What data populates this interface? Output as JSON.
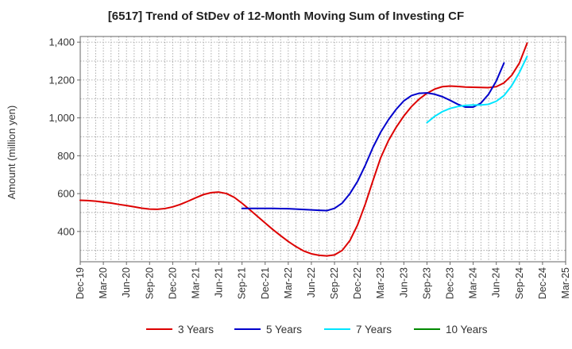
{
  "chart_data": {
    "type": "line",
    "title": "[6517]  Trend of StDev of 12-Month Moving Sum of Investing CF",
    "ylabel": "Amount (million yen)",
    "xlabel": "",
    "ylim": [
      240,
      1430
    ],
    "yticks": [
      400,
      600,
      800,
      1000,
      1200,
      1400
    ],
    "ytick_labels": [
      "400",
      "600",
      "800",
      "1,000",
      "1,200",
      "1,400"
    ],
    "xtick_labels": [
      "Dec-19",
      "Mar-20",
      "Jun-20",
      "Sep-20",
      "Dec-20",
      "Mar-21",
      "Jun-21",
      "Sep-21",
      "Dec-21",
      "Mar-22",
      "Jun-22",
      "Sep-22",
      "Dec-22",
      "Mar-23",
      "Jun-23",
      "Sep-23",
      "Dec-23",
      "Mar-24",
      "Jun-24",
      "Sep-24",
      "Dec-24",
      "Mar-25"
    ],
    "grid": true,
    "legend_position": "bottom",
    "series": [
      {
        "name": "3 Years",
        "color": "#dd0000",
        "start": "Dec-19",
        "values": [
          565,
          563,
          560,
          555,
          550,
          543,
          537,
          530,
          523,
          518,
          517,
          521,
          530,
          543,
          560,
          578,
          595,
          605,
          608,
          600,
          580,
          549,
          515,
          480,
          445,
          410,
          378,
          347,
          320,
          297,
          282,
          274,
          271,
          276,
          300,
          352,
          435,
          545,
          670,
          790,
          880,
          950,
          1010,
          1060,
          1100,
          1130,
          1152,
          1165,
          1168,
          1166,
          1163,
          1162,
          1161,
          1160,
          1165,
          1185,
          1225,
          1290,
          1395
        ]
      },
      {
        "name": "5 Years",
        "color": "#0000cc",
        "start": "Sep-21",
        "values": [
          522,
          522,
          522,
          522,
          522,
          521,
          520,
          518,
          516,
          514,
          512,
          510,
          522,
          550,
          600,
          665,
          750,
          845,
          925,
          990,
          1045,
          1090,
          1118,
          1130,
          1132,
          1125,
          1112,
          1093,
          1072,
          1057,
          1057,
          1078,
          1125,
          1195,
          1290
        ]
      },
      {
        "name": "7 Years",
        "color": "#00e5ff",
        "start": "Sep-23",
        "values": [
          975,
          1008,
          1033,
          1050,
          1060,
          1066,
          1068,
          1068,
          1072,
          1088,
          1118,
          1170,
          1240,
          1325
        ]
      },
      {
        "name": "10 Years",
        "color": "#008800",
        "start": "Sep-24",
        "values": []
      }
    ]
  }
}
